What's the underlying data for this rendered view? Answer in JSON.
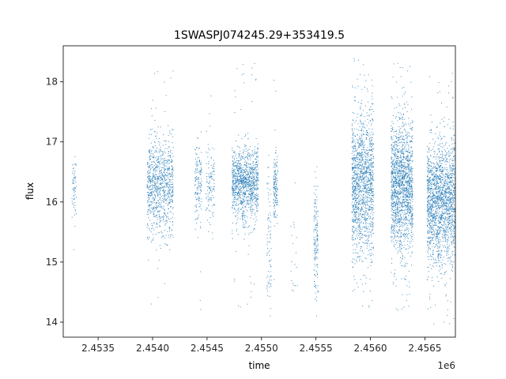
{
  "chart_data": {
    "type": "scatter",
    "title": "1SWASPJ074245.29+353419.5",
    "xlabel": "time",
    "ylabel": "flux",
    "x_offset_label": "1e6",
    "xlim": [
      2.45318,
      2.45678
    ],
    "ylim": [
      13.75,
      18.6
    ],
    "x_ticks": [
      {
        "value": 2.4535,
        "label": "2.4535"
      },
      {
        "value": 2.454,
        "label": "2.4540"
      },
      {
        "value": 2.4545,
        "label": "2.4545"
      },
      {
        "value": 2.455,
        "label": "2.4550"
      },
      {
        "value": 2.4555,
        "label": "2.4555"
      },
      {
        "value": 2.456,
        "label": "2.4560"
      },
      {
        "value": 2.4565,
        "label": "2.4565"
      }
    ],
    "y_ticks": [
      {
        "value": 14,
        "label": "14"
      },
      {
        "value": 15,
        "label": "15"
      },
      {
        "value": 16,
        "label": "16"
      },
      {
        "value": 17,
        "label": "17"
      },
      {
        "value": 18,
        "label": "18"
      }
    ],
    "grid": false,
    "point_color": "#1f77b4",
    "clusters": [
      {
        "x_center": 2.45328,
        "x_width": 2e-05,
        "flux_center": 16.25,
        "flux_spread": 0.25,
        "density": 60
      },
      {
        "x_center": 2.45407,
        "x_width": 0.00012,
        "flux_center": 16.25,
        "flux_spread": 0.4,
        "density": 900
      },
      {
        "x_center": 2.45442,
        "x_width": 3e-05,
        "flux_center": 16.3,
        "flux_spread": 0.35,
        "density": 150
      },
      {
        "x_center": 2.45453,
        "x_width": 4e-05,
        "flux_center": 16.3,
        "flux_spread": 0.35,
        "density": 120
      },
      {
        "x_center": 2.45485,
        "x_width": 0.00012,
        "flux_center": 16.3,
        "flux_spread": 0.3,
        "density": 1100
      },
      {
        "x_center": 2.45513,
        "x_width": 2e-05,
        "flux_center": 16.2,
        "flux_spread": 0.3,
        "density": 150
      },
      {
        "x_center": 2.45507,
        "x_width": 2e-05,
        "flux_center": 15.3,
        "flux_spread": 0.6,
        "density": 80
      },
      {
        "x_center": 2.4553,
        "x_width": 3e-05,
        "flux_center": 15.0,
        "flux_spread": 0.4,
        "density": 20
      },
      {
        "x_center": 2.4555,
        "x_width": 2e-05,
        "flux_center": 15.3,
        "flux_spread": 0.5,
        "density": 150
      },
      {
        "x_center": 2.45593,
        "x_width": 0.0001,
        "flux_center": 16.3,
        "flux_spread": 0.6,
        "density": 1400
      },
      {
        "x_center": 2.45629,
        "x_width": 0.0001,
        "flux_center": 16.25,
        "flux_spread": 0.55,
        "density": 1600
      },
      {
        "x_center": 2.45665,
        "x_width": 0.00013,
        "flux_center": 16.0,
        "flux_spread": 0.5,
        "density": 1800
      }
    ]
  }
}
